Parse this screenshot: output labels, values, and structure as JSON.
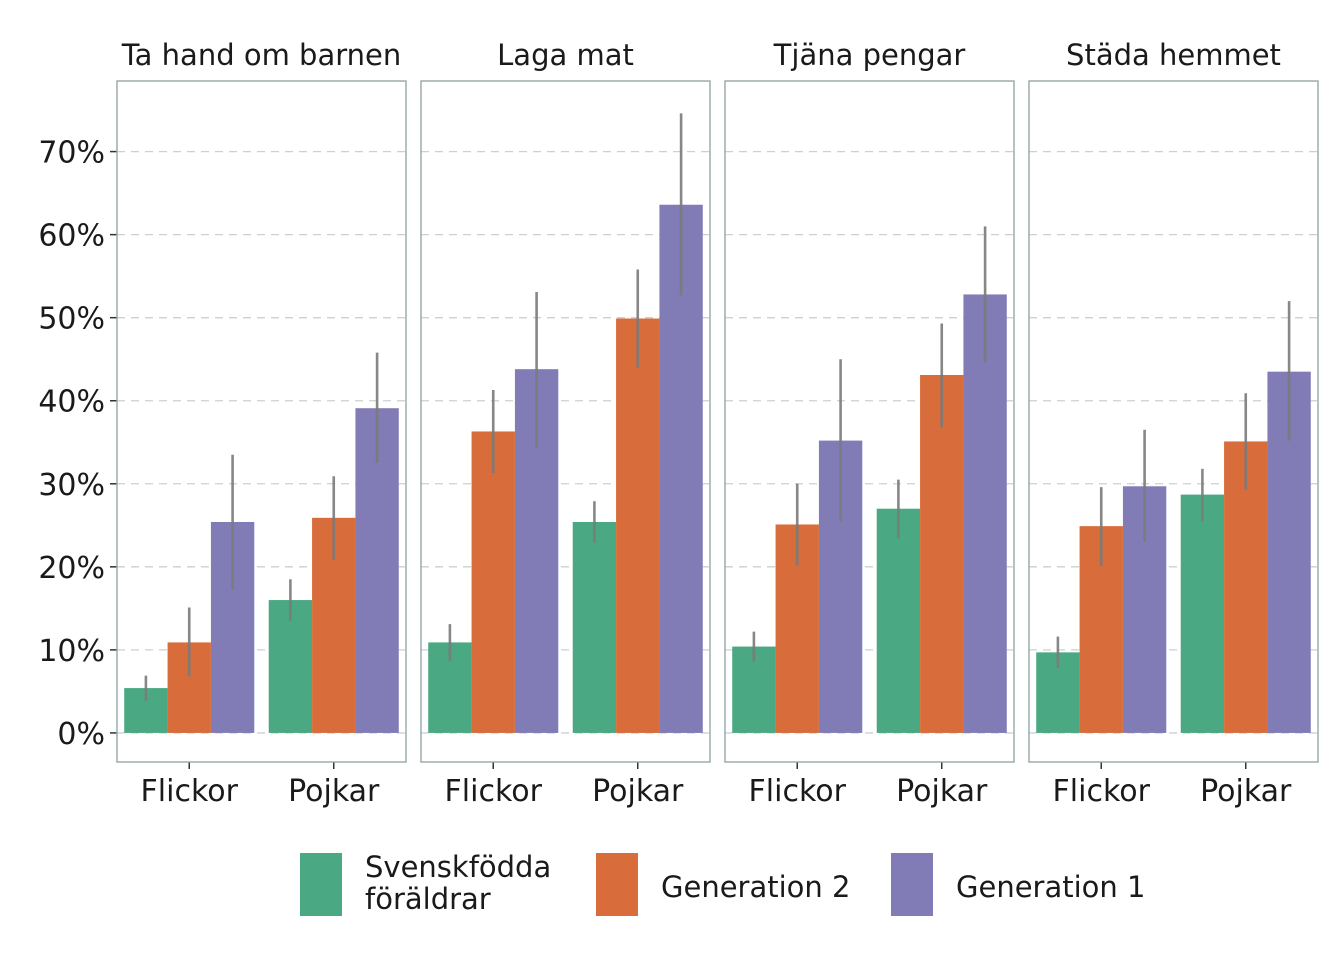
{
  "colors": {
    "Svenskfödda föräldrar": "#4aa882",
    "Generation 2": "#d86c3a",
    "Generation 1": "#817bb6",
    "panel_border": "#93a8a5",
    "grid": "#c9d2d0",
    "error_bar": "#7a7a7a"
  },
  "chart_data": {
    "type": "bar",
    "categories": [
      "Flickor",
      "Pojkar"
    ],
    "ylim": [
      -0.035,
      0.785
    ],
    "yticks": [
      0,
      0.1,
      0.2,
      0.3,
      0.4,
      0.5,
      0.6,
      0.7
    ],
    "ytick_labels": [
      "0%",
      "10%",
      "20%",
      "30%",
      "40%",
      "50%",
      "60%",
      "70%"
    ],
    "grid": "horizontal dashed",
    "legend_position": "bottom",
    "legend": [
      {
        "name": "Svenskfödda föräldrar",
        "lines": [
          "Svenskfödda",
          "föräldrar"
        ]
      },
      {
        "name": "Generation 2",
        "lines": [
          "Generation 2"
        ]
      },
      {
        "name": "Generation 1",
        "lines": [
          "Generation 1"
        ]
      }
    ],
    "facets": [
      {
        "title": "Ta hand om barnen",
        "series": [
          {
            "name": "Svenskfödda föräldrar",
            "values": [
              0.054,
              0.16
            ],
            "lower": [
              0.039,
              0.135
            ],
            "upper": [
              0.069,
              0.185
            ]
          },
          {
            "name": "Generation 2",
            "values": [
              0.109,
              0.259
            ],
            "lower": [
              0.068,
              0.208
            ],
            "upper": [
              0.151,
              0.309
            ]
          },
          {
            "name": "Generation 1",
            "values": [
              0.254,
              0.391
            ],
            "lower": [
              0.173,
              0.325
            ],
            "upper": [
              0.335,
              0.458
            ]
          }
        ]
      },
      {
        "title": "Laga mat",
        "series": [
          {
            "name": "Svenskfödda föräldrar",
            "values": [
              0.109,
              0.254
            ],
            "lower": [
              0.087,
              0.229
            ],
            "upper": [
              0.131,
              0.279
            ]
          },
          {
            "name": "Generation 2",
            "values": [
              0.363,
              0.499
            ],
            "lower": [
              0.313,
              0.44
            ],
            "upper": [
              0.413,
              0.558
            ]
          },
          {
            "name": "Generation 1",
            "values": [
              0.438,
              0.636
            ],
            "lower": [
              0.344,
              0.527
            ],
            "upper": [
              0.531,
              0.746
            ]
          }
        ]
      },
      {
        "title": "Tjäna pengar",
        "series": [
          {
            "name": "Svenskfödda föräldrar",
            "values": [
              0.104,
              0.27
            ],
            "lower": [
              0.086,
              0.234
            ],
            "upper": [
              0.122,
              0.305
            ]
          },
          {
            "name": "Generation 2",
            "values": [
              0.251,
              0.431
            ],
            "lower": [
              0.202,
              0.368
            ],
            "upper": [
              0.3,
              0.493
            ]
          },
          {
            "name": "Generation 1",
            "values": [
              0.352,
              0.528
            ],
            "lower": [
              0.255,
              0.446
            ],
            "upper": [
              0.45,
              0.61
            ]
          }
        ]
      },
      {
        "title": "Städa hemmet",
        "series": [
          {
            "name": "Svenskfödda föräldrar",
            "values": [
              0.097,
              0.287
            ],
            "lower": [
              0.078,
              0.255
            ],
            "upper": [
              0.116,
              0.318
            ]
          },
          {
            "name": "Generation 2",
            "values": [
              0.249,
              0.351
            ],
            "lower": [
              0.201,
              0.293
            ],
            "upper": [
              0.296,
              0.409
            ]
          },
          {
            "name": "Generation 1",
            "values": [
              0.297,
              0.435
            ],
            "lower": [
              0.23,
              0.352
            ],
            "upper": [
              0.365,
              0.52
            ]
          }
        ]
      }
    ]
  }
}
